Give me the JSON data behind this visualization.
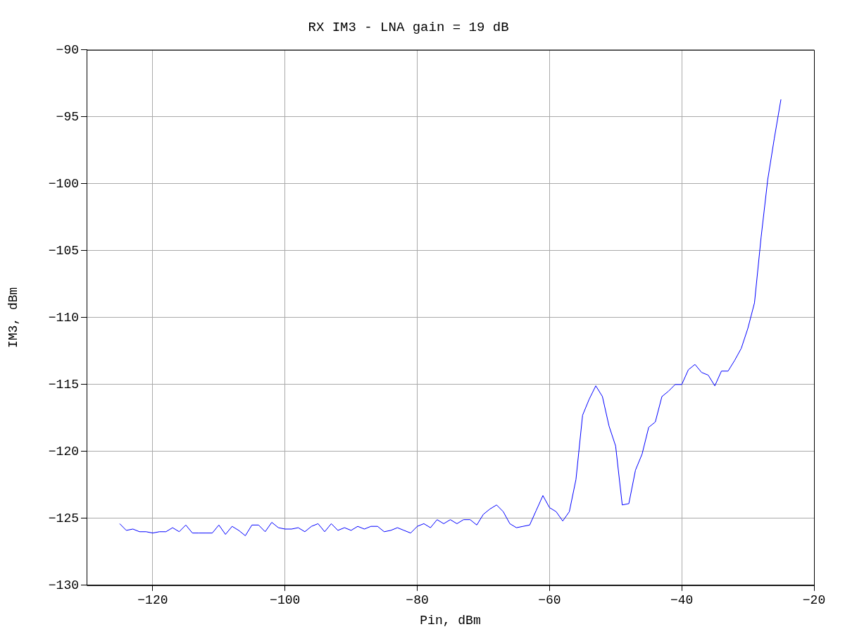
{
  "chart_data": {
    "type": "line",
    "title": "RX IM3 - LNA gain = 19 dB",
    "xlabel": "Pin, dBm",
    "ylabel": "IM3, dBm",
    "x": [
      -125,
      -124,
      -123,
      -122,
      -121,
      -120,
      -119,
      -118,
      -117,
      -116,
      -115,
      -114,
      -113,
      -112,
      -111,
      -110,
      -109,
      -108,
      -107,
      -106,
      -105,
      -104,
      -103,
      -102,
      -101,
      -100,
      -99,
      -98,
      -97,
      -96,
      -95,
      -94,
      -93,
      -92,
      -91,
      -90,
      -89,
      -88,
      -87,
      -86,
      -85,
      -84,
      -83,
      -82,
      -81,
      -80,
      -79,
      -78,
      -77,
      -76,
      -75,
      -74,
      -73,
      -72,
      -71,
      -70,
      -69,
      -68,
      -67,
      -66,
      -65,
      -64,
      -63,
      -62,
      -61,
      -60,
      -59,
      -58,
      -57,
      -56,
      -55,
      -54,
      -53,
      -52,
      -51,
      -50,
      -49,
      -48,
      -47,
      -46,
      -45,
      -44,
      -43,
      -42,
      -41,
      -40,
      -39,
      -38,
      -37,
      -36,
      -35,
      -34,
      -33,
      -32,
      -31,
      -30,
      -29,
      -28,
      -27,
      -26,
      -25
    ],
    "series": [
      {
        "color": "#0000ff",
        "values": [
          -125.4,
          -125.9,
          -125.8,
          -126.0,
          -126.0,
          -126.1,
          -126.0,
          -126.0,
          -125.7,
          -126.0,
          -125.5,
          -126.1,
          -126.1,
          -126.1,
          -126.1,
          -125.5,
          -126.2,
          -125.6,
          -125.9,
          -126.3,
          -125.5,
          -125.5,
          -126.0,
          -125.3,
          -125.7,
          -125.8,
          -125.8,
          -125.7,
          -126.0,
          -125.6,
          -125.4,
          -126.0,
          -125.4,
          -125.9,
          -125.7,
          -125.9,
          -125.6,
          -125.8,
          -125.6,
          -125.6,
          -126.0,
          -125.9,
          -125.7,
          -125.9,
          -126.1,
          -125.6,
          -125.4,
          -125.7,
          -125.1,
          -125.4,
          -125.1,
          -125.4,
          -125.1,
          -125.1,
          -125.5,
          -124.7,
          -124.3,
          -124.0,
          -124.5,
          -125.4,
          -125.7,
          -125.6,
          -125.5,
          -124.4,
          -123.3,
          -124.2,
          -124.5,
          -125.2,
          -124.5,
          -122.1,
          -117.3,
          -116.1,
          -115.1,
          -115.9,
          -118.1,
          -119.6,
          -124.0,
          -123.9,
          -121.4,
          -120.2,
          -118.2,
          -117.8,
          -115.9,
          -115.5,
          -115.0,
          -115.0,
          -113.9,
          -113.5,
          -114.1,
          -114.3,
          -115.1,
          -114.0,
          -114.0,
          -113.2,
          -112.3,
          -110.8,
          -108.9,
          -104.0,
          -99.7,
          -96.6,
          -93.7
        ]
      }
    ],
    "xlim": [
      -130,
      -20
    ],
    "xticks": [
      -120,
      -100,
      -80,
      -60,
      -40,
      -20
    ],
    "ylim": [
      -130,
      -90
    ],
    "yticks": [
      -130,
      -125,
      -120,
      -115,
      -110,
      -105,
      -100,
      -95,
      -90
    ],
    "grid": true,
    "legend": false,
    "marker": "none",
    "line_style": "solid"
  }
}
